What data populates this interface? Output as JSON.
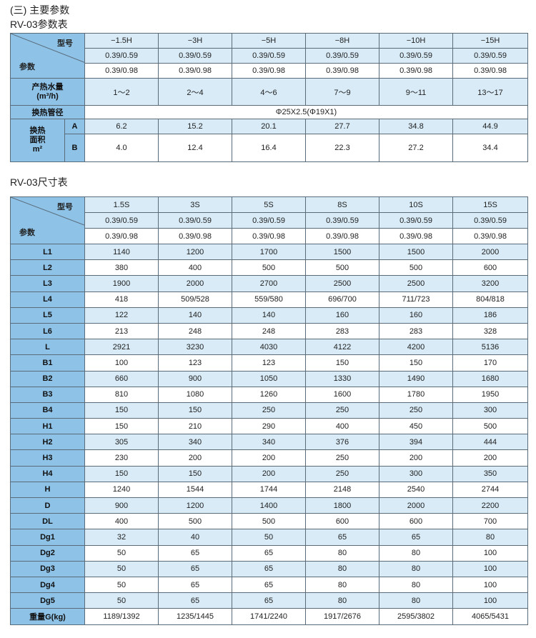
{
  "section_heading": "(三) 主要参数",
  "params_table": {
    "title": "RV-03参数表",
    "corner_model": "型号",
    "corner_param": "参数",
    "models": [
      "−1.5H",
      "−3H",
      "−5H",
      "−8H",
      "−10H",
      "−15H"
    ],
    "pressure_059": [
      "0.39/0.59",
      "0.39/0.59",
      "0.39/0.59",
      "0.39/0.59",
      "0.39/0.59",
      "0.39/0.59"
    ],
    "pressure_098": [
      "0.39/0.98",
      "0.39/0.98",
      "0.39/0.98",
      "0.39/0.98",
      "0.39/0.98",
      "0.39/0.98"
    ],
    "water_label": "产热水量",
    "water_unit": "(m³/h)",
    "water_values": [
      "1～2",
      "2～4",
      "4～6",
      "7～9",
      "9～11",
      "13～17"
    ],
    "tube_label": "换热管径",
    "tube_value": "Φ25X2.5(Φ19X1)",
    "area_label_1": "换热",
    "area_label_2": "面积",
    "area_label_3": "m²",
    "area_a_label": "A",
    "area_a_values": [
      "6.2",
      "15.2",
      "20.1",
      "27.7",
      "34.8",
      "44.9"
    ],
    "area_b_label": "B",
    "area_b_values": [
      "4.0",
      "12.4",
      "16.4",
      "22.3",
      "27.2",
      "34.4"
    ]
  },
  "size_table": {
    "title": "RV-03尺寸表",
    "corner_model": "型号",
    "corner_param": "参数",
    "models": [
      "1.5S",
      "3S",
      "5S",
      "8S",
      "10S",
      "15S"
    ],
    "pressure_059": [
      "0.39/0.59",
      "0.39/0.59",
      "0.39/0.59",
      "0.39/0.59",
      "0.39/0.59",
      "0.39/0.59"
    ],
    "pressure_098": [
      "0.39/0.98",
      "0.39/0.98",
      "0.39/0.98",
      "0.39/0.98",
      "0.39/0.98",
      "0.39/0.98"
    ],
    "rows": [
      {
        "label": "L1",
        "values": [
          "1140",
          "1200",
          "1700",
          "1500",
          "1500",
          "2000"
        ]
      },
      {
        "label": "L2",
        "values": [
          "380",
          "400",
          "500",
          "500",
          "500",
          "600"
        ]
      },
      {
        "label": "L3",
        "values": [
          "1900",
          "2000",
          "2700",
          "2500",
          "2500",
          "3200"
        ]
      },
      {
        "label": "L4",
        "values": [
          "418",
          "509/528",
          "559/580",
          "696/700",
          "711/723",
          "804/818"
        ]
      },
      {
        "label": "L5",
        "values": [
          "122",
          "140",
          "140",
          "160",
          "160",
          "186"
        ]
      },
      {
        "label": "L6",
        "values": [
          "213",
          "248",
          "248",
          "283",
          "283",
          "328"
        ]
      },
      {
        "label": "L",
        "values": [
          "2921",
          "3230",
          "4030",
          "4122",
          "4200",
          "5136"
        ]
      },
      {
        "label": "B1",
        "values": [
          "100",
          "123",
          "123",
          "150",
          "150",
          "170"
        ]
      },
      {
        "label": "B2",
        "values": [
          "660",
          "900",
          "1050",
          "1330",
          "1490",
          "1680"
        ]
      },
      {
        "label": "B3",
        "values": [
          "810",
          "1080",
          "1260",
          "1600",
          "1780",
          "1950"
        ]
      },
      {
        "label": "B4",
        "values": [
          "150",
          "150",
          "250",
          "250",
          "250",
          "300"
        ]
      },
      {
        "label": "H1",
        "values": [
          "150",
          "210",
          "290",
          "400",
          "450",
          "500"
        ]
      },
      {
        "label": "H2",
        "values": [
          "305",
          "340",
          "340",
          "376",
          "394",
          "444"
        ]
      },
      {
        "label": "H3",
        "values": [
          "230",
          "200",
          "200",
          "250",
          "200",
          "200"
        ]
      },
      {
        "label": "H4",
        "values": [
          "150",
          "150",
          "200",
          "250",
          "300",
          "350"
        ]
      },
      {
        "label": "H",
        "values": [
          "1240",
          "1544",
          "1744",
          "2148",
          "2540",
          "2744"
        ]
      },
      {
        "label": "D",
        "values": [
          "900",
          "1200",
          "1400",
          "1800",
          "2000",
          "2200"
        ]
      },
      {
        "label": "DL",
        "values": [
          "400",
          "500",
          "500",
          "600",
          "600",
          "700"
        ]
      },
      {
        "label": "Dg1",
        "values": [
          "32",
          "40",
          "50",
          "65",
          "65",
          "80"
        ]
      },
      {
        "label": "Dg2",
        "values": [
          "50",
          "65",
          "65",
          "80",
          "80",
          "100"
        ]
      },
      {
        "label": "Dg3",
        "values": [
          "50",
          "65",
          "65",
          "80",
          "80",
          "100"
        ]
      },
      {
        "label": "Dg4",
        "values": [
          "50",
          "65",
          "65",
          "80",
          "80",
          "100"
        ]
      },
      {
        "label": "Dg5",
        "values": [
          "50",
          "65",
          "65",
          "80",
          "80",
          "100"
        ]
      },
      {
        "label": "重量G(kg)",
        "values": [
          "1189/1392",
          "1235/1445",
          "1741/2240",
          "1917/2676",
          "2595/3802",
          "4065/5431"
        ]
      }
    ]
  }
}
